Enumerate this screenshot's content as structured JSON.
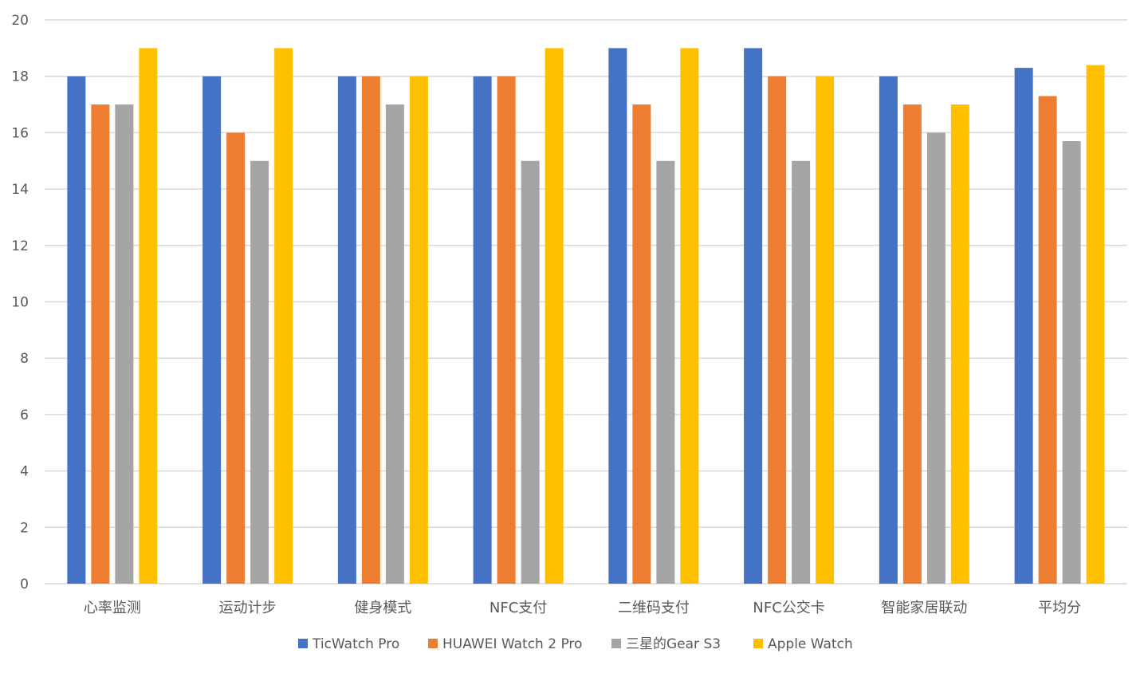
{
  "chart_data": {
    "type": "bar",
    "categories": [
      "心率监测",
      "运动计步",
      "健身模式",
      "NFC支付",
      "二维码支付",
      "NFC公交卡",
      "智能家居联动",
      "平均分"
    ],
    "series": [
      {
        "name": "TicWatch Pro",
        "color": "#4472c4",
        "values": [
          18,
          18,
          18,
          18,
          19,
          19,
          18,
          18.3
        ]
      },
      {
        "name": "HUAWEI Watch 2 Pro",
        "color": "#ed7d31",
        "values": [
          17,
          16,
          18,
          18,
          17,
          18,
          17,
          17.3
        ]
      },
      {
        "name": "三星的Gear S3",
        "color": "#a5a5a5",
        "values": [
          17,
          15,
          17,
          15,
          15,
          15,
          16,
          15.7
        ]
      },
      {
        "name": "Apple Watch",
        "color": "#ffc000",
        "values": [
          19,
          19,
          18,
          19,
          19,
          18,
          17,
          18.4
        ]
      }
    ],
    "ylim": [
      0,
      20
    ],
    "y_ticks": [
      "0",
      "2",
      "4",
      "6",
      "8",
      "10",
      "12",
      "14",
      "16",
      "18",
      "20"
    ],
    "grid": true,
    "legend_position": "bottom",
    "title": "",
    "xlabel": "",
    "ylabel": ""
  }
}
